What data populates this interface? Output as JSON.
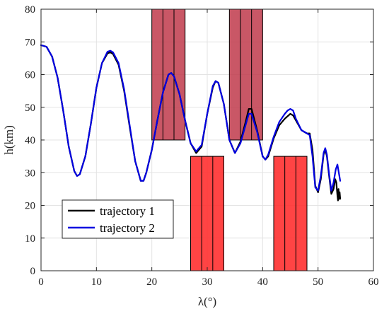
{
  "chart_data": {
    "type": "line",
    "xlabel": "λ(°)",
    "ylabel": "h(km)",
    "xlim": [
      0,
      60
    ],
    "ylim": [
      0,
      80
    ],
    "xticks": [
      0,
      10,
      20,
      30,
      40,
      50,
      60
    ],
    "yticks": [
      0,
      10,
      20,
      30,
      40,
      50,
      60,
      70,
      80
    ],
    "grid": true,
    "legend_position": "bottom-left",
    "series": [
      {
        "name": "trajectory 1",
        "color": "#000000",
        "points": [
          [
            0,
            69
          ],
          [
            1,
            68.5
          ],
          [
            2,
            65.5
          ],
          [
            3,
            59
          ],
          [
            4,
            49
          ],
          [
            5,
            38
          ],
          [
            6,
            30.5
          ],
          [
            6.5,
            29
          ],
          [
            7,
            29.5
          ],
          [
            8,
            35
          ],
          [
            9,
            45
          ],
          [
            10,
            56
          ],
          [
            11,
            63.5
          ],
          [
            12,
            66.5
          ],
          [
            12.5,
            66.8
          ],
          [
            13,
            66.3
          ],
          [
            14,
            63
          ],
          [
            15,
            55
          ],
          [
            16,
            44
          ],
          [
            17,
            33.5
          ],
          [
            18,
            27.5
          ],
          [
            18.5,
            27.5
          ],
          [
            19,
            30
          ],
          [
            20,
            37
          ],
          [
            21,
            46
          ],
          [
            22,
            54.5
          ],
          [
            23,
            60
          ],
          [
            23.5,
            60.5
          ],
          [
            24,
            59.5
          ],
          [
            25,
            54
          ],
          [
            26,
            46
          ],
          [
            27,
            39
          ],
          [
            28,
            36
          ],
          [
            29,
            38
          ],
          [
            30,
            48
          ],
          [
            31,
            56
          ],
          [
            31.5,
            58
          ],
          [
            32,
            57.5
          ],
          [
            33,
            51
          ],
          [
            34,
            40
          ],
          [
            35,
            36
          ],
          [
            36,
            39.5
          ],
          [
            37,
            46
          ],
          [
            37.5,
            49.5
          ],
          [
            38,
            49.5
          ],
          [
            39,
            43
          ],
          [
            40,
            35
          ],
          [
            40.5,
            34
          ],
          [
            41,
            35
          ],
          [
            42,
            40.5
          ],
          [
            43,
            44.5
          ],
          [
            44,
            46.5
          ],
          [
            45,
            48
          ],
          [
            45.5,
            47.5
          ],
          [
            46,
            46
          ],
          [
            47,
            43
          ],
          [
            48,
            42
          ],
          [
            48.5,
            42
          ],
          [
            49,
            37
          ],
          [
            49.5,
            26
          ],
          [
            50,
            24
          ],
          [
            50.5,
            28
          ],
          [
            51,
            35.5
          ],
          [
            51.3,
            37
          ],
          [
            51.6,
            35
          ],
          [
            52,
            29
          ],
          [
            52.4,
            23.5
          ],
          [
            52.8,
            25
          ],
          [
            53.1,
            28
          ],
          [
            53.3,
            27
          ],
          [
            53.5,
            23
          ],
          [
            53.6,
            21.5
          ],
          [
            53.7,
            25
          ],
          [
            53.8,
            22
          ],
          [
            53.9,
            24
          ],
          [
            54,
            22
          ]
        ]
      },
      {
        "name": "trajectory 2",
        "color": "#0000e0",
        "points": [
          [
            0,
            69
          ],
          [
            1,
            68.5
          ],
          [
            2,
            65.5
          ],
          [
            3,
            59
          ],
          [
            4,
            49
          ],
          [
            5,
            38
          ],
          [
            6,
            30.5
          ],
          [
            6.5,
            29
          ],
          [
            7,
            29.5
          ],
          [
            8,
            35
          ],
          [
            9,
            45
          ],
          [
            10,
            56
          ],
          [
            11,
            63.5
          ],
          [
            12,
            67
          ],
          [
            12.5,
            67.3
          ],
          [
            13,
            66.8
          ],
          [
            14,
            63.5
          ],
          [
            15,
            55.5
          ],
          [
            16,
            44.5
          ],
          [
            17,
            33.5
          ],
          [
            18,
            27.5
          ],
          [
            18.5,
            27.5
          ],
          [
            19,
            30
          ],
          [
            20,
            37
          ],
          [
            21,
            46
          ],
          [
            22,
            54.5
          ],
          [
            23,
            60
          ],
          [
            23.5,
            60.5
          ],
          [
            24,
            59.5
          ],
          [
            25,
            54
          ],
          [
            26,
            46
          ],
          [
            27,
            39
          ],
          [
            28,
            36.5
          ],
          [
            29,
            38.5
          ],
          [
            30,
            48
          ],
          [
            31,
            56.5
          ],
          [
            31.5,
            58
          ],
          [
            32,
            57.5
          ],
          [
            33,
            51
          ],
          [
            34,
            40
          ],
          [
            35,
            36
          ],
          [
            36,
            39
          ],
          [
            37,
            45
          ],
          [
            37.5,
            48
          ],
          [
            38,
            48
          ],
          [
            39,
            42.5
          ],
          [
            40,
            35
          ],
          [
            40.5,
            34
          ],
          [
            41,
            35.5
          ],
          [
            42,
            41
          ],
          [
            43,
            45.5
          ],
          [
            44,
            48
          ],
          [
            44.5,
            49
          ],
          [
            45,
            49.5
          ],
          [
            45.5,
            49
          ],
          [
            46,
            46.5
          ],
          [
            47,
            43
          ],
          [
            48,
            42
          ],
          [
            48.5,
            41.5
          ],
          [
            49,
            35
          ],
          [
            49.5,
            25.5
          ],
          [
            50,
            24.5
          ],
          [
            50.5,
            29
          ],
          [
            51,
            36
          ],
          [
            51.3,
            37.5
          ],
          [
            51.6,
            35.5
          ],
          [
            52,
            29.5
          ],
          [
            52.4,
            24.5
          ],
          [
            52.8,
            27
          ],
          [
            53.2,
            31
          ],
          [
            53.5,
            32.5
          ],
          [
            53.8,
            29.5
          ],
          [
            54,
            27.5
          ]
        ]
      }
    ],
    "rectangles": [
      {
        "x0": 20,
        "x1": 26,
        "y0": 40,
        "y1": 80,
        "dividers": [
          22,
          24
        ],
        "fill": "#c0394b",
        "opacity": 0.85
      },
      {
        "x0": 34,
        "x1": 40,
        "y0": 40,
        "y1": 80,
        "dividers": [
          36,
          38
        ],
        "fill": "#c0394b",
        "opacity": 0.85
      },
      {
        "x0": 27,
        "x1": 33,
        "y0": 0,
        "y1": 35,
        "dividers": [
          29,
          31
        ],
        "fill": "#ff2a2a",
        "opacity": 0.88
      },
      {
        "x0": 42,
        "x1": 48,
        "y0": 0,
        "y1": 35,
        "dividers": [
          44,
          46
        ],
        "fill": "#ff2a2a",
        "opacity": 0.88
      }
    ]
  }
}
